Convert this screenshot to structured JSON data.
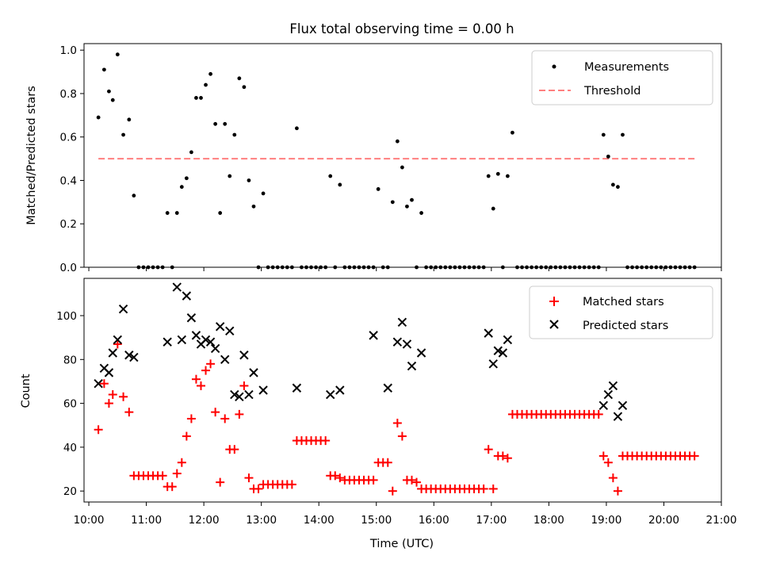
{
  "chart_data": [
    {
      "type": "scatter",
      "title": "Flux total observing time = 0.00 h",
      "ylabel": "Matched/Predicted stars",
      "xlabel": "",
      "ylim": [
        0,
        1.03
      ],
      "yticks": [
        0.0,
        0.2,
        0.4,
        0.6,
        0.8,
        1.0
      ],
      "ytick_labels": [
        "0.0",
        "0.2",
        "0.4",
        "0.6",
        "0.8",
        "1.0"
      ],
      "legend": {
        "position": "top-right",
        "entries": [
          "Measurements",
          "Threshold"
        ]
      },
      "threshold": {
        "name": "Threshold",
        "value": 0.5,
        "x_start": "10:10",
        "x_end": "20:35",
        "color": "#ff7f7f"
      },
      "series": [
        {
          "name": "Measurements",
          "color": "#000000",
          "x": [
            "10:10",
            "10:16",
            "10:21",
            "10:25",
            "10:30",
            "10:36",
            "10:42",
            "10:47",
            "10:52",
            "10:57",
            "11:02",
            "11:07",
            "11:12",
            "11:17",
            "11:22",
            "11:27",
            "11:32",
            "11:37",
            "11:42",
            "11:47",
            "11:52",
            "11:57",
            "12:02",
            "12:07",
            "12:12",
            "12:17",
            "12:22",
            "12:27",
            "12:32",
            "12:37",
            "12:42",
            "12:47",
            "12:52",
            "12:57",
            "13:02",
            "13:07",
            "13:12",
            "13:17",
            "13:22",
            "13:27",
            "13:32",
            "13:37",
            "13:42",
            "13:47",
            "13:52",
            "13:57",
            "14:02",
            "14:07",
            "14:12",
            "14:17",
            "14:22",
            "14:27",
            "14:32",
            "14:37",
            "14:42",
            "14:47",
            "14:52",
            "14:57",
            "15:02",
            "15:07",
            "15:12",
            "15:17",
            "15:22",
            "15:27",
            "15:32",
            "15:37",
            "15:42",
            "15:47",
            "15:52",
            "15:57",
            "16:02",
            "16:07",
            "16:12",
            "16:17",
            "16:22",
            "16:27",
            "16:32",
            "16:37",
            "16:42",
            "16:47",
            "16:52",
            "16:57",
            "17:02",
            "17:07",
            "17:12",
            "17:17",
            "17:22",
            "17:27",
            "17:32",
            "17:37",
            "17:42",
            "17:47",
            "17:52",
            "17:57",
            "18:02",
            "18:07",
            "18:12",
            "18:17",
            "18:22",
            "18:27",
            "18:32",
            "18:37",
            "18:42",
            "18:47",
            "18:52",
            "18:57",
            "19:02",
            "19:07",
            "19:12",
            "19:17",
            "19:22",
            "19:27",
            "19:32",
            "19:37",
            "19:42",
            "19:47",
            "19:52",
            "19:57",
            "20:02",
            "20:07",
            "20:12",
            "20:17",
            "20:22",
            "20:27",
            "20:32"
          ],
          "y": [
            0.69,
            0.91,
            0.81,
            0.77,
            0.98,
            0.61,
            0.68,
            0.33,
            0.0,
            0.0,
            0.0,
            0.0,
            0.0,
            0.0,
            0.25,
            0.0,
            0.25,
            0.37,
            0.41,
            0.53,
            0.78,
            0.78,
            0.84,
            0.89,
            0.66,
            0.25,
            0.66,
            0.42,
            0.61,
            0.87,
            0.83,
            0.4,
            0.28,
            0.0,
            0.34,
            0.0,
            0.0,
            0.0,
            0.0,
            0.0,
            0.0,
            0.64,
            0.0,
            0.0,
            0.0,
            0.0,
            0.0,
            0.0,
            0.42,
            0.0,
            0.38,
            0.0,
            0.0,
            0.0,
            0.0,
            0.0,
            0.0,
            0.0,
            0.36,
            0.0,
            0.0,
            0.3,
            0.58,
            0.46,
            0.28,
            0.31,
            0.0,
            0.25,
            0.0,
            0.0,
            0.0,
            0.0,
            0.0,
            0.0,
            0.0,
            0.0,
            0.0,
            0.0,
            0.0,
            0.0,
            0.0,
            0.42,
            0.27,
            0.43,
            0.0,
            0.42,
            0.62,
            0.0,
            0.0,
            0.0,
            0.0,
            0.0,
            0.0,
            0.0,
            0.0,
            0.0,
            0.0,
            0.0,
            0.0,
            0.0,
            0.0,
            0.0,
            0.0,
            0.0,
            0.0,
            0.61,
            0.51,
            0.38,
            0.37,
            0.61,
            0.0,
            0.0,
            0.0,
            0.0,
            0.0,
            0.0,
            0.0,
            0.0,
            0.0,
            0.0,
            0.0,
            0.0,
            0.0,
            0.0,
            0.0
          ]
        }
      ]
    },
    {
      "type": "scatter",
      "title": "",
      "xlabel": "Time (UTC)",
      "ylabel": "Count",
      "ylim": [
        15,
        117
      ],
      "yticks": [
        20,
        40,
        60,
        80,
        100
      ],
      "ytick_labels": [
        "20",
        "40",
        "60",
        "80",
        "100"
      ],
      "xlim": [
        "09:55",
        "21:00"
      ],
      "xticks": [
        "10:00",
        "11:00",
        "12:00",
        "13:00",
        "14:00",
        "15:00",
        "16:00",
        "17:00",
        "18:00",
        "19:00",
        "20:00",
        "21:00"
      ],
      "legend": {
        "position": "top-right",
        "entries": [
          "Matched stars",
          "Predicted stars"
        ]
      },
      "series": [
        {
          "name": "Matched stars",
          "color": "#ff0000",
          "marker": "plus",
          "x": [
            "10:10",
            "10:16",
            "10:21",
            "10:25",
            "10:30",
            "10:36",
            "10:42",
            "10:47",
            "10:52",
            "10:57",
            "11:02",
            "11:07",
            "11:12",
            "11:17",
            "11:22",
            "11:27",
            "11:32",
            "11:37",
            "11:42",
            "11:47",
            "11:52",
            "11:57",
            "12:02",
            "12:07",
            "12:12",
            "12:17",
            "12:22",
            "12:27",
            "12:32",
            "12:37",
            "12:42",
            "12:47",
            "12:52",
            "12:57",
            "13:02",
            "13:07",
            "13:12",
            "13:17",
            "13:22",
            "13:27",
            "13:32",
            "13:37",
            "13:42",
            "13:47",
            "13:52",
            "13:57",
            "14:02",
            "14:07",
            "14:12",
            "14:17",
            "14:22",
            "14:27",
            "14:32",
            "14:37",
            "14:42",
            "14:47",
            "14:52",
            "14:57",
            "15:02",
            "15:07",
            "15:12",
            "15:17",
            "15:22",
            "15:27",
            "15:32",
            "15:37",
            "15:42",
            "15:47",
            "15:52",
            "15:57",
            "16:02",
            "16:07",
            "16:12",
            "16:17",
            "16:22",
            "16:27",
            "16:32",
            "16:37",
            "16:42",
            "16:47",
            "16:52",
            "16:57",
            "17:02",
            "17:07",
            "17:12",
            "17:17",
            "17:22",
            "17:27",
            "17:32",
            "17:37",
            "17:42",
            "17:47",
            "17:52",
            "17:57",
            "18:02",
            "18:07",
            "18:12",
            "18:17",
            "18:22",
            "18:27",
            "18:32",
            "18:37",
            "18:42",
            "18:47",
            "18:52",
            "18:57",
            "19:02",
            "19:07",
            "19:12",
            "19:17",
            "19:22",
            "19:27",
            "19:32",
            "19:37",
            "19:42",
            "19:47",
            "19:52",
            "19:57",
            "20:02",
            "20:07",
            "20:12",
            "20:17",
            "20:22",
            "20:27",
            "20:32"
          ],
          "y": [
            48,
            69,
            60,
            64,
            87,
            63,
            56,
            27,
            27,
            27,
            27,
            27,
            27,
            27,
            22,
            22,
            28,
            33,
            45,
            53,
            71,
            68,
            75,
            78,
            56,
            24,
            53,
            39,
            39,
            55,
            68,
            26,
            21,
            21,
            23,
            23,
            23,
            23,
            23,
            23,
            23,
            43,
            43,
            43,
            43,
            43,
            43,
            43,
            27,
            27,
            26,
            25,
            25,
            25,
            25,
            25,
            25,
            25,
            33,
            33,
            33,
            20,
            51,
            45,
            25,
            25,
            24,
            21,
            21,
            21,
            21,
            21,
            21,
            21,
            21,
            21,
            21,
            21,
            21,
            21,
            21,
            39,
            21,
            36,
            36,
            35,
            55,
            55,
            55,
            55,
            55,
            55,
            55,
            55,
            55,
            55,
            55,
            55,
            55,
            55,
            55,
            55,
            55,
            55,
            55,
            36,
            33,
            26,
            20,
            36,
            36,
            36,
            36,
            36,
            36,
            36,
            36,
            36,
            36,
            36,
            36,
            36,
            36,
            36,
            36
          ]
        },
        {
          "name": "Predicted stars",
          "color": "#000000",
          "marker": "x",
          "x": [
            "10:10",
            "10:16",
            "10:21",
            "10:25",
            "10:30",
            "10:36",
            "10:42",
            "10:47",
            "11:22",
            "11:32",
            "11:37",
            "11:42",
            "11:47",
            "11:52",
            "11:57",
            "12:02",
            "12:07",
            "12:12",
            "12:17",
            "12:22",
            "12:27",
            "12:32",
            "12:37",
            "12:42",
            "12:47",
            "12:52",
            "13:02",
            "13:37",
            "14:12",
            "14:22",
            "14:57",
            "15:12",
            "15:22",
            "15:27",
            "15:32",
            "15:37",
            "15:47",
            "16:57",
            "17:02",
            "17:07",
            "17:12",
            "17:17",
            "17:22",
            "17:27",
            "18:57",
            "19:02",
            "19:07",
            "19:12",
            "19:17",
            "19:22"
          ],
          "y": [
            69,
            76,
            74,
            83,
            89,
            103,
            82,
            81,
            88,
            113,
            89,
            109,
            99,
            91,
            87,
            89,
            88,
            85,
            95,
            80,
            93,
            64,
            63,
            82,
            64,
            74,
            66,
            67,
            64,
            66,
            91,
            67,
            88,
            97,
            87,
            77,
            83,
            92,
            78,
            84,
            83,
            89,
            null,
            null,
            59,
            64,
            68,
            54,
            59,
            null
          ]
        }
      ]
    }
  ]
}
